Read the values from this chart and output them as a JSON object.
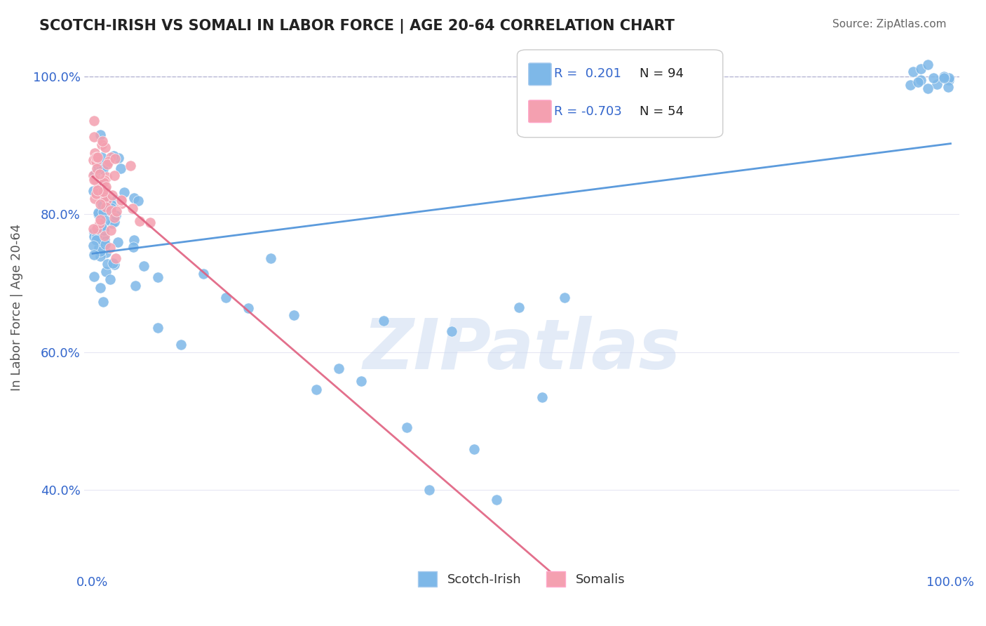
{
  "title": "SCOTCH-IRISH VS SOMALI IN LABOR FORCE | AGE 20-64 CORRELATION CHART",
  "source": "Source: ZipAtlas.com",
  "xlabel": "",
  "ylabel": "In Labor Force | Age 20-64",
  "xlim": [
    0.0,
    1.0
  ],
  "ylim": [
    0.28,
    1.05
  ],
  "x_tick_labels": [
    "0.0%",
    "100.0%"
  ],
  "y_ticks": [
    0.4,
    0.6,
    0.8,
    1.0
  ],
  "y_tick_labels": [
    "40.0%",
    "60.0%",
    "80.0%",
    "100.0%"
  ],
  "scotch_irish_R": 0.201,
  "scotch_irish_N": 94,
  "somali_R": -0.703,
  "somali_N": 54,
  "blue_color": "#7EB8E8",
  "pink_color": "#F4A0B0",
  "trend_blue": "#4A90D9",
  "trend_pink": "#E06080",
  "dashed_line_y": 1.0,
  "dashed_color": "#AAAACC",
  "watermark": "ZIPatlas",
  "watermark_color": "#C8D8F0",
  "legend_R_color": "#3366CC"
}
